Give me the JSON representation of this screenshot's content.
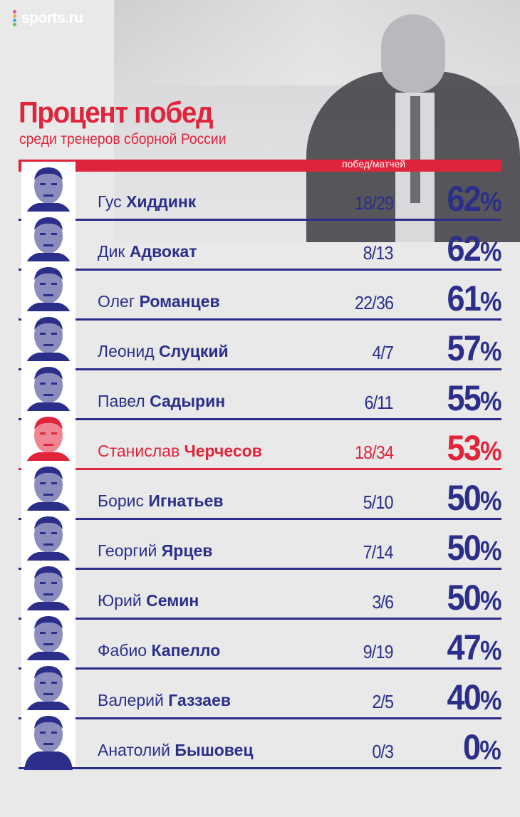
{
  "brand": {
    "name": "sports.ru",
    "dot_colors": [
      "#e84f9a",
      "#f2b233",
      "#42b3e5",
      "#5cc15a"
    ]
  },
  "colors": {
    "navy": "#2b2f8a",
    "red": "#e0243b",
    "bg": "#e9e9ea"
  },
  "chart_data": {
    "type": "table",
    "title": "Процент побед",
    "subtitle": "среди тренеров сборной России",
    "column_header": "побед/матчей",
    "rows": [
      {
        "first": "Гус",
        "last": "Хиддинк",
        "ratio": "18/29",
        "wins": 18,
        "matches": 29,
        "value": 62,
        "highlight": false
      },
      {
        "first": "Дик",
        "last": "Адвокат",
        "ratio": "8/13",
        "wins": 8,
        "matches": 13,
        "value": 62,
        "highlight": false
      },
      {
        "first": "Олег",
        "last": "Романцев",
        "ratio": "22/36",
        "wins": 22,
        "matches": 36,
        "value": 61,
        "highlight": false
      },
      {
        "first": "Леонид",
        "last": "Слуцкий",
        "ratio": "4/7",
        "wins": 4,
        "matches": 7,
        "value": 57,
        "highlight": false
      },
      {
        "first": "Павел",
        "last": "Садырин",
        "ratio": "6/11",
        "wins": 6,
        "matches": 11,
        "value": 55,
        "highlight": false
      },
      {
        "first": "Станислав",
        "last": "Черчесов",
        "ratio": "18/34",
        "wins": 18,
        "matches": 34,
        "value": 53,
        "highlight": true
      },
      {
        "first": "Борис",
        "last": "Игнатьев",
        "ratio": "5/10",
        "wins": 5,
        "matches": 10,
        "value": 50,
        "highlight": false
      },
      {
        "first": "Георгий",
        "last": "Ярцев",
        "ratio": "7/14",
        "wins": 7,
        "matches": 14,
        "value": 50,
        "highlight": false
      },
      {
        "first": "Юрий",
        "last": "Семин",
        "ratio": "3/6",
        "wins": 3,
        "matches": 6,
        "value": 50,
        "highlight": false
      },
      {
        "first": "Фабио",
        "last": "Капелло",
        "ratio": "9/19",
        "wins": 9,
        "matches": 19,
        "value": 47,
        "highlight": false
      },
      {
        "first": "Валерий",
        "last": "Газзаев",
        "ratio": "2/5",
        "wins": 2,
        "matches": 5,
        "value": 40,
        "highlight": false
      },
      {
        "first": "Анатолий",
        "last": "Бышовец",
        "ratio": "0/3",
        "wins": 0,
        "matches": 3,
        "value": 0,
        "highlight": false
      }
    ]
  }
}
